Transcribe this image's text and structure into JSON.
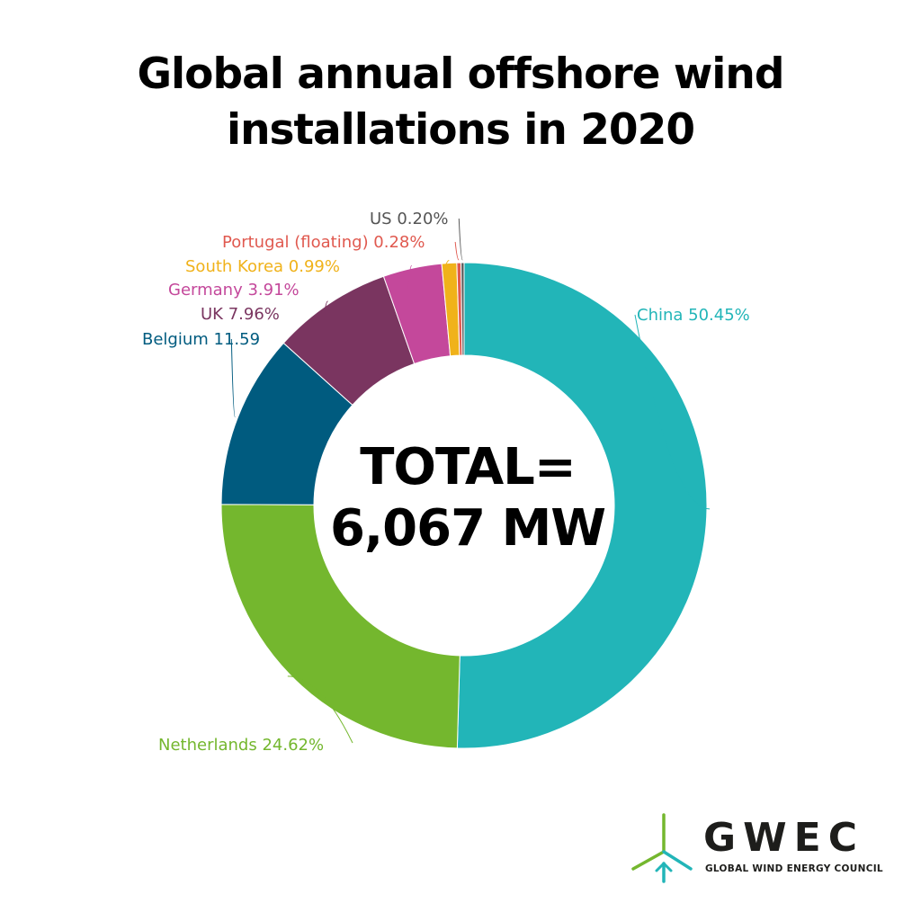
{
  "title_lines": [
    "Global annual offshore wind",
    "installations in 2020"
  ],
  "center": {
    "line1": "TOTAL=",
    "line2": "6,067 MW"
  },
  "logo": {
    "name": "GWEC",
    "subtitle": "GLOBAL WIND ENERGY COUNCIL",
    "icon": "wind-turbine-icon"
  },
  "chart_data": {
    "type": "pie",
    "style": "donut",
    "title": "Global annual offshore wind installations in 2020",
    "total_label": "TOTAL= 6,067 MW",
    "slices": [
      {
        "label": "China 50.45%",
        "value": 50.45,
        "color": "#22b5b8"
      },
      {
        "label": "Netherlands 24.62%",
        "value": 24.62,
        "color": "#74b72e"
      },
      {
        "label": "Belgium 11.59",
        "value": 11.59,
        "color": "#005b7f"
      },
      {
        "label": "UK 7.96%",
        "value": 7.96,
        "color": "#7a3560"
      },
      {
        "label": "Germany 3.91%",
        "value": 3.91,
        "color": "#c4489b"
      },
      {
        "label": "South Korea 0.99%",
        "value": 0.99,
        "color": "#f0b21a"
      },
      {
        "label": "Portugal (floating) 0.28%",
        "value": 0.28,
        "color": "#e0594f"
      },
      {
        "label": "US 0.20%",
        "value": 0.2,
        "color": "#5a5a5a"
      }
    ]
  }
}
